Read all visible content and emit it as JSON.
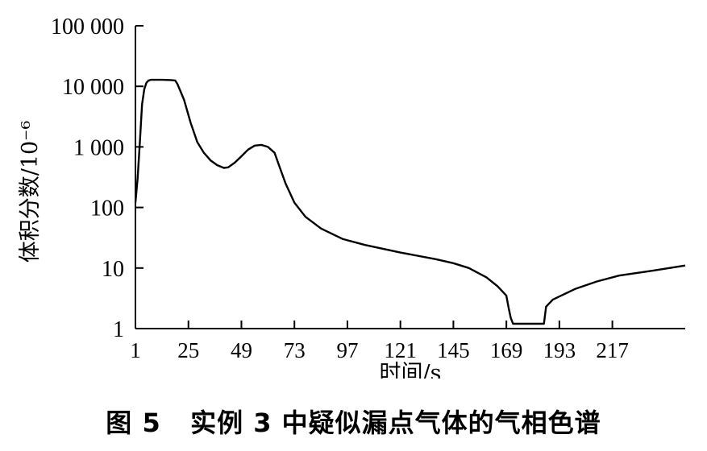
{
  "chart_data": {
    "type": "line",
    "title": "",
    "xlabel": "时间/s",
    "ylabel": "体积分数/10⁻⁶",
    "yscale": "log",
    "xlim": [
      1,
      250
    ],
    "ylim": [
      1,
      100000
    ],
    "x_ticks": [
      1,
      25,
      49,
      73,
      97,
      121,
      145,
      169,
      193,
      217
    ],
    "y_ticks": [
      1,
      10,
      100,
      1000,
      10000,
      100000
    ],
    "y_tick_labels": [
      "1",
      "10",
      "100",
      "1 000",
      "10 000",
      "100 000"
    ],
    "grid": false,
    "series": [
      {
        "color": "#000000",
        "x": [
          1,
          2,
          3,
          4,
          5,
          6,
          7,
          8,
          10,
          13,
          17,
          19,
          20,
          23,
          26,
          29,
          32,
          35,
          38,
          41,
          43,
          46,
          49,
          52,
          55,
          58,
          61,
          64,
          66,
          69,
          73,
          78,
          85,
          95,
          105,
          121,
          137,
          145,
          152,
          160,
          165,
          169,
          170,
          171,
          172,
          180,
          185,
          186,
          187,
          190,
          200,
          210,
          220,
          235,
          250
        ],
        "y": [
          120,
          300,
          1200,
          5000,
          9000,
          11500,
          12500,
          12800,
          12800,
          12800,
          12700,
          12500,
          11000,
          6000,
          2500,
          1200,
          800,
          600,
          500,
          450,
          460,
          550,
          700,
          900,
          1050,
          1080,
          1000,
          800,
          500,
          250,
          120,
          70,
          45,
          30,
          24,
          18,
          14,
          12,
          10,
          7,
          5,
          3.5,
          2.2,
          1.5,
          1.2,
          1.2,
          1.2,
          1.2,
          2.3,
          3,
          4.5,
          6,
          7.5,
          9,
          11
        ]
      }
    ]
  },
  "caption": "图 5   实例 3 中疑似漏点气体的气相色谱"
}
